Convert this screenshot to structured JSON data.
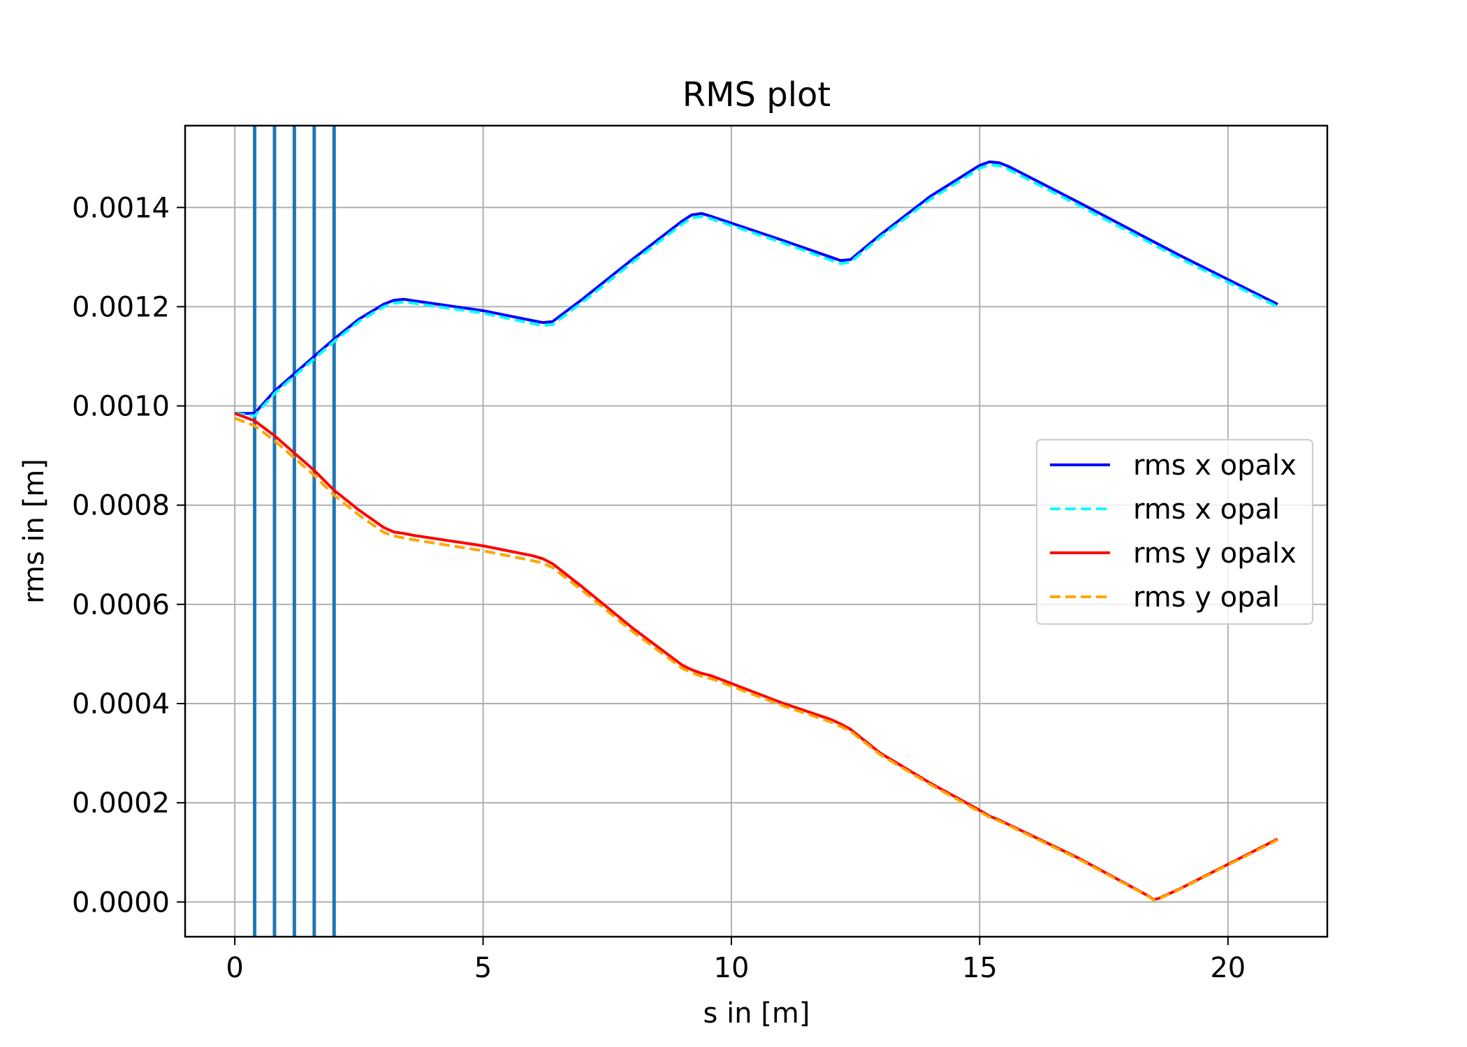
{
  "chart_data": {
    "type": "line",
    "title": "RMS plot",
    "xlabel": "s in [m]",
    "ylabel": "rms in [m]",
    "xlim": [
      -1.0,
      22.0
    ],
    "ylim": [
      -7e-05,
      0.001565
    ],
    "xticks": [
      0,
      5,
      10,
      15,
      20
    ],
    "xtick_labels": [
      "0",
      "5",
      "10",
      "15",
      "20"
    ],
    "yticks": [
      0.0,
      0.0002,
      0.0004,
      0.0006,
      0.0008,
      0.001,
      0.0012,
      0.0014
    ],
    "ytick_labels": [
      "0.0000",
      "0.0002",
      "0.0004",
      "0.0006",
      "0.0008",
      "0.0010",
      "0.0012",
      "0.0014"
    ],
    "grid": true,
    "legend_position": "center-right",
    "vertical_lines": {
      "color": "#1f77b4",
      "x": [
        0.4,
        0.8,
        1.2,
        1.6,
        2.0
      ]
    },
    "series": [
      {
        "name": "rms x opalx",
        "color": "#0000ff",
        "style": "solid",
        "x": [
          0,
          0.4,
          0.8,
          1.2,
          1.6,
          2.0,
          2.5,
          3.0,
          3.2,
          3.4,
          3.6,
          5,
          6,
          6.2,
          6.4,
          7,
          8,
          9,
          9.2,
          9.4,
          9.6,
          11,
          12,
          12.2,
          12.4,
          13,
          14,
          15,
          15.2,
          15.4,
          15.6,
          17,
          19,
          21
        ],
        "y": [
          0.000985,
          0.000985,
          0.00103,
          0.001065,
          0.0011,
          0.001135,
          0.001175,
          0.001205,
          0.001213,
          0.001215,
          0.001212,
          0.001192,
          0.001172,
          0.001168,
          0.00117,
          0.001215,
          0.001295,
          0.001372,
          0.001385,
          0.001388,
          0.001382,
          0.001335,
          0.0013,
          0.001293,
          0.001295,
          0.001345,
          0.001422,
          0.001485,
          0.001492,
          0.00149,
          0.001482,
          0.00141,
          0.001305,
          0.001205
        ]
      },
      {
        "name": "rms x opal",
        "color": "#00ffff",
        "style": "dashed",
        "x": [
          0,
          0.4,
          0.8,
          1.2,
          1.6,
          2.0,
          2.5,
          3.0,
          3.2,
          3.4,
          3.6,
          5,
          6,
          6.2,
          6.4,
          7,
          8,
          9,
          9.2,
          9.4,
          9.6,
          11,
          12,
          12.2,
          12.4,
          13,
          14,
          15,
          15.2,
          15.4,
          15.6,
          17,
          19,
          21
        ],
        "y": [
          0.000985,
          0.00098,
          0.001025,
          0.00106,
          0.001095,
          0.00113,
          0.00117,
          0.0012,
          0.001207,
          0.001209,
          0.001207,
          0.001187,
          0.001166,
          0.001162,
          0.001164,
          0.001209,
          0.001289,
          0.001366,
          0.001379,
          0.001382,
          0.001377,
          0.00133,
          0.001294,
          0.001287,
          0.00129,
          0.00134,
          0.001416,
          0.001479,
          0.001486,
          0.001484,
          0.001476,
          0.001404,
          0.001299,
          0.0012
        ]
      },
      {
        "name": "rms y opalx",
        "color": "#ff0000",
        "style": "solid",
        "x": [
          0,
          0.4,
          0.8,
          1.2,
          1.6,
          2.0,
          2.5,
          3.0,
          3.2,
          3.4,
          3.6,
          5,
          6,
          6.2,
          6.4,
          7,
          8,
          9,
          9.2,
          9.4,
          9.6,
          11,
          12,
          12.2,
          12.4,
          13,
          14,
          15,
          15.2,
          15.4,
          17,
          18.4,
          18.5,
          18.6,
          19,
          21
        ],
        "y": [
          0.000985,
          0.00097,
          0.00094,
          0.000905,
          0.00087,
          0.00083,
          0.00079,
          0.000755,
          0.000746,
          0.000743,
          0.000739,
          0.000718,
          0.000698,
          0.000692,
          0.000682,
          0.000635,
          0.000553,
          0.000478,
          0.000468,
          0.000461,
          0.000456,
          0.000402,
          0.000368,
          0.000359,
          0.000348,
          0.0003,
          0.00024,
          0.000185,
          0.000173,
          0.000165,
          8.8e-05,
          1.2e-05,
          5e-06,
          7e-06,
          2.5e-05,
          0.000127
        ]
      },
      {
        "name": "rms y opal",
        "color": "#ffa500",
        "style": "dashed",
        "x": [
          0,
          0.4,
          0.8,
          1.2,
          1.6,
          2.0,
          2.5,
          3.0,
          3.2,
          3.4,
          3.6,
          5,
          6,
          6.2,
          6.4,
          7,
          8,
          9,
          9.2,
          9.4,
          9.6,
          11,
          12,
          12.2,
          12.4,
          13,
          14,
          15,
          15.2,
          15.4,
          17,
          18.4,
          18.5,
          18.6,
          19,
          21
        ],
        "y": [
          0.000975,
          0.00096,
          0.00093,
          0.000895,
          0.00086,
          0.00082,
          0.00078,
          0.000745,
          0.000738,
          0.000734,
          0.00073,
          0.000708,
          0.000688,
          0.000683,
          0.000674,
          0.000628,
          0.000546,
          0.000472,
          0.000462,
          0.000455,
          0.00045,
          0.000397,
          0.000363,
          0.000354,
          0.000344,
          0.000297,
          0.000237,
          0.000182,
          0.000171,
          0.000163,
          8.6e-05,
          1.1e-05,
          4e-06,
          6e-06,
          2.4e-05,
          0.000125
        ]
      }
    ]
  }
}
